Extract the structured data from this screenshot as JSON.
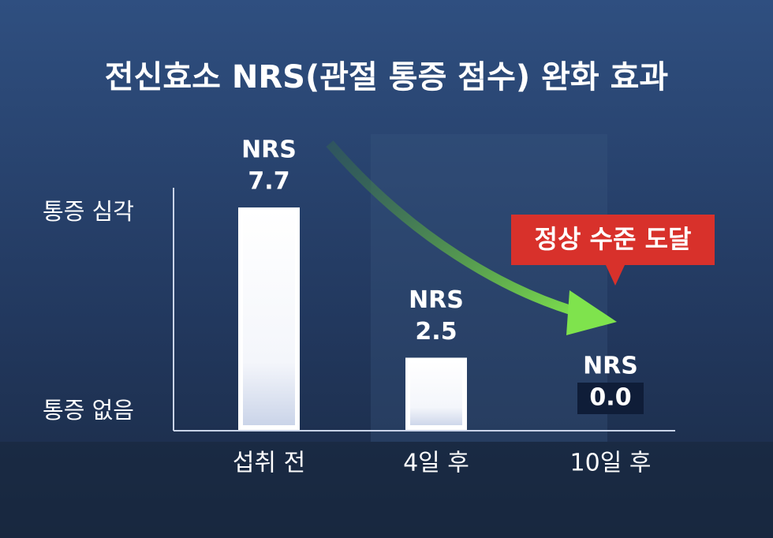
{
  "chart_data": {
    "type": "bar",
    "title": "전신효소 NRS(관절 통증 점수) 완화 효과",
    "y_annotations": [
      "통증 심각",
      "통증 없음"
    ],
    "callout": "정상 수준 도달",
    "categories": [
      "섭취 전",
      "4일 후",
      "10일 후"
    ],
    "values": [
      7.7,
      2.5,
      0
    ],
    "value_labels": [
      "7.7",
      "2.5",
      "0.0"
    ],
    "value_label_prefix": "NRS",
    "ylim": [
      0,
      8
    ],
    "color": "#ffffff"
  }
}
